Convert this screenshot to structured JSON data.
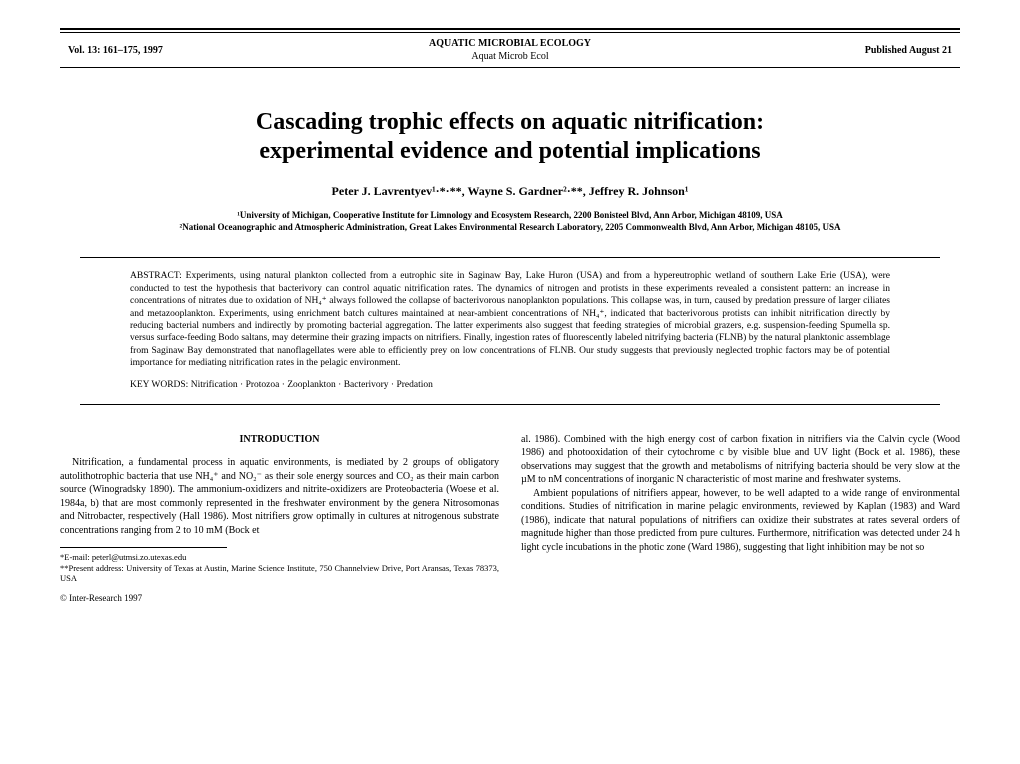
{
  "header": {
    "left": "Vol. 13: 161–175, 1997",
    "center_top": "AQUATIC MICROBIAL ECOLOGY",
    "center_bottom": "Aquat Microb Ecol",
    "right": "Published August 21"
  },
  "title_line1": "Cascading trophic effects on aquatic nitrification:",
  "title_line2": "experimental evidence and potential implications",
  "authors": "Peter J. Lavrentyev¹·*·**, Wayne S. Gardner²·**, Jeffrey R. Johnson¹",
  "affil1": "¹University of Michigan, Cooperative Institute for Limnology and Ecosystem Research, 2200 Bonisteel Blvd, Ann Arbor, Michigan 48109, USA",
  "affil2": "²National Oceanographic and Atmospheric Administration, Great Lakes Environmental Research Laboratory, 2205 Commonwealth Blvd, Ann Arbor, Michigan 48105, USA",
  "abstract_label": "ABSTRACT:",
  "abstract_text": " Experiments, using natural plankton collected from a eutrophic site in Saginaw Bay, Lake Huron (USA) and from a hypereutrophic wetland of southern Lake Erie (USA), were conducted to test the hypothesis that bacterivory can control aquatic nitrification rates. The dynamics of nitrogen and protists in these experiments revealed a consistent pattern: an increase in concentrations of nitrates due to oxidation of NH₄⁺ always followed the collapse of bacterivorous nanoplankton populations. This collapse was, in turn, caused by predation pressure of larger ciliates and metazooplankton. Experiments, using enrichment batch cultures maintained at near-ambient concentrations of NH₄⁺, indicated that bacterivorous protists can inhibit nitrification directly by reducing bacterial numbers and indirectly by promoting bacterial aggregation. The latter experiments also suggest that feeding strategies of microbial grazers, e.g. suspension-feeding Spumella sp. versus surface-feeding Bodo saltans, may determine their grazing impacts on nitrifiers. Finally, ingestion rates of fluorescently labeled nitrifying bacteria (FLNB) by the natural planktonic assemblage from Saginaw Bay demonstrated that nanoflagellates were able to efficiently prey on low concentrations of FLNB. Our study suggests that previously neglected trophic factors may be of potential importance for mediating nitrification rates in the pelagic environment.",
  "keywords_label": "KEY WORDS:",
  "keywords_text": "  Nitrification · Protozoa · Zooplankton · Bacterivory · Predation",
  "intro_head": "INTRODUCTION",
  "col_left_p1": "Nitrification, a fundamental process in aquatic environments, is mediated by 2 groups of obligatory autolithotrophic bacteria that use NH₄⁺ and NO₂⁻ as their sole energy sources and CO₂ as their main carbon source (Winogradsky 1890). The ammonium-oxidizers and nitrite-oxidizers are Proteobacteria (Woese et al. 1984a, b) that are most commonly represented in the freshwater environment by the genera Nitrosomonas and Nitrobacter, respectively (Hall 1986). Most nitrifiers grow optimally in cultures at nitrogenous substrate concentrations ranging from 2 to 10 mM (Bock et",
  "col_right_p1": "al. 1986). Combined with the high energy cost of carbon fixation in nitrifiers via the Calvin cycle (Wood 1986) and photooxidation of their cytochrome c by visible blue and UV light (Bock et al. 1986), these observations may suggest that the growth and metabolisms of nitrifying bacteria should be very slow at the µM to nM concentrations of inorganic N characteristic of most marine and freshwater systems.",
  "col_right_p2": "Ambient populations of nitrifiers appear, however, to be well adapted to a wide range of environmental conditions. Studies of nitrification in marine pelagic environments, reviewed by Kaplan (1983) and Ward (1986), indicate that natural populations of nitrifiers can oxidize their substrates at rates several orders of magnitude higher than those predicted from pure cultures. Furthermore, nitrification was detected under 24 h light cycle incubations in the photic zone (Ward 1986), suggesting that light inhibition may be not so",
  "fn1": "*E-mail: peterl@utmsi.zo.utexas.edu",
  "fn2": "**Present address: University of Texas at Austin, Marine Science Institute, 750 Channelview Drive, Port Aransas, Texas 78373, USA",
  "copyright": "© Inter-Research 1997"
}
